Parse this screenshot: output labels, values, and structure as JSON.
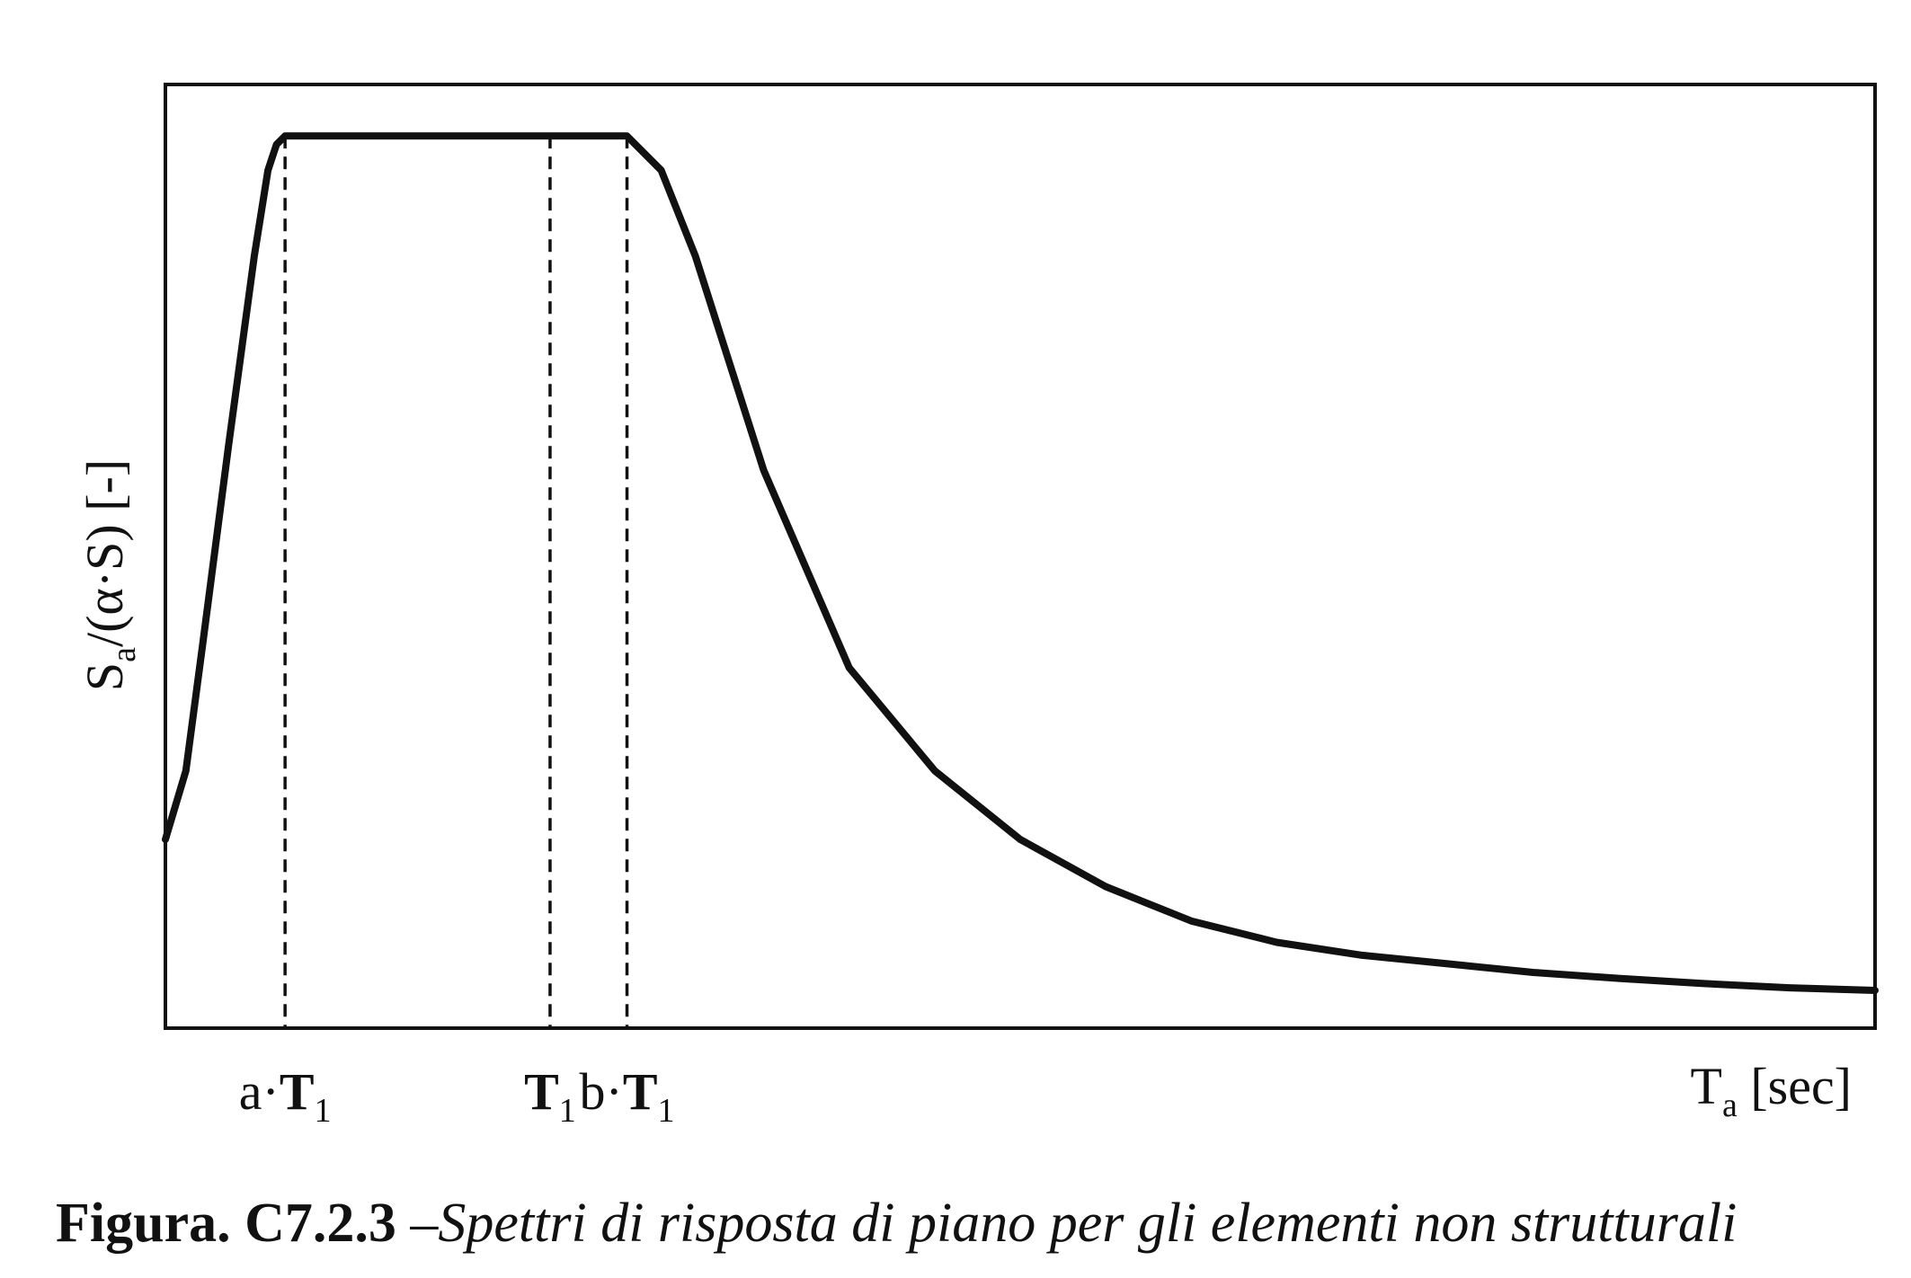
{
  "chart_data": {
    "type": "line",
    "ylabel": "Sa/(α·S) [-]",
    "ylabel_parts": {
      "main": "S",
      "sub": "a",
      "rest": "/(α·S) [-]"
    },
    "xlabel": "Ta [sec]",
    "xlabel_parts": {
      "main": "T",
      "sub": "a",
      "rest": " [sec]"
    },
    "xlim": [
      0,
      10
    ],
    "ylim": [
      0,
      1.1
    ],
    "grid": false,
    "legend": "none",
    "colors": {
      "line": "#111111",
      "frame": "#111111"
    },
    "markers": [
      {
        "name": "a·T1",
        "x": 0.7,
        "label_pre": "a·",
        "label_main": "T",
        "label_sub": "1"
      },
      {
        "name": "T1",
        "x": 2.25,
        "label_pre": "",
        "label_main": "T",
        "label_sub": "1"
      },
      {
        "name": "b·T1",
        "x": 2.7,
        "label_pre": "b·",
        "label_main": "T",
        "label_sub": "1"
      }
    ],
    "series": [
      {
        "x": [
          0,
          0.12,
          0.22,
          0.37,
          0.52,
          0.6,
          0.65,
          0.7,
          2.7,
          2.9,
          3.1,
          3.5,
          4.0,
          4.5,
          5.0,
          5.5,
          6.0,
          6.5,
          7.0,
          7.5,
          8.0,
          8.5,
          9.0,
          9.5,
          10.0
        ],
        "y": [
          0.22,
          0.3,
          0.45,
          0.68,
          0.9,
          1.0,
          1.03,
          1.04,
          1.04,
          1.0,
          0.9,
          0.65,
          0.42,
          0.3,
          0.22,
          0.165,
          0.125,
          0.1,
          0.085,
          0.075,
          0.065,
          0.058,
          0.052,
          0.047,
          0.044
        ]
      }
    ]
  },
  "caption": {
    "number": "Figura. C7.2.3",
    "text": "–Spettri di risposta di piano per gli elementi non strutturali"
  }
}
